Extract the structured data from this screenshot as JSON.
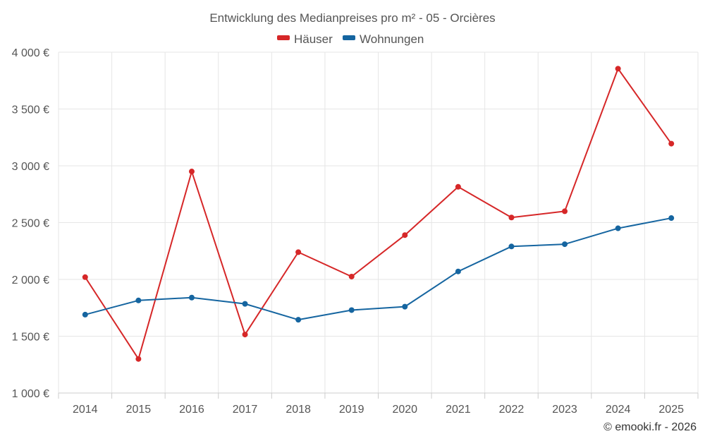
{
  "colors": {
    "houses": "#d62728",
    "apartments": "#1565a0"
  },
  "chart_data": {
    "type": "line",
    "title": "Entwicklung des Medianpreises pro m² - 05 - Orcières",
    "categories": [
      "2014",
      "2015",
      "2016",
      "2017",
      "2018",
      "2019",
      "2020",
      "2021",
      "2022",
      "2023",
      "2024",
      "2025"
    ],
    "series": [
      {
        "name": "Häuser",
        "color_key": "houses",
        "values": [
          2020,
          1300,
          2950,
          1515,
          2240,
          2025,
          2390,
          2815,
          2545,
          2600,
          3855,
          3195
        ]
      },
      {
        "name": "Wohnungen",
        "color_key": "apartments",
        "values": [
          1690,
          1815,
          1840,
          1785,
          1645,
          1730,
          1760,
          2070,
          2290,
          2310,
          2450,
          2540
        ]
      }
    ],
    "ylim": [
      1000,
      4000
    ],
    "yticks": [
      1000,
      1500,
      2000,
      2500,
      3000,
      3500,
      4000
    ],
    "ytick_labels": [
      "1 000 €",
      "1 500 €",
      "2 000 €",
      "2 500 €",
      "3 000 €",
      "3 500 €",
      "4 000 €"
    ],
    "grid": true,
    "legend": "top-center"
  },
  "credit": "© emooki.fr - 2026"
}
